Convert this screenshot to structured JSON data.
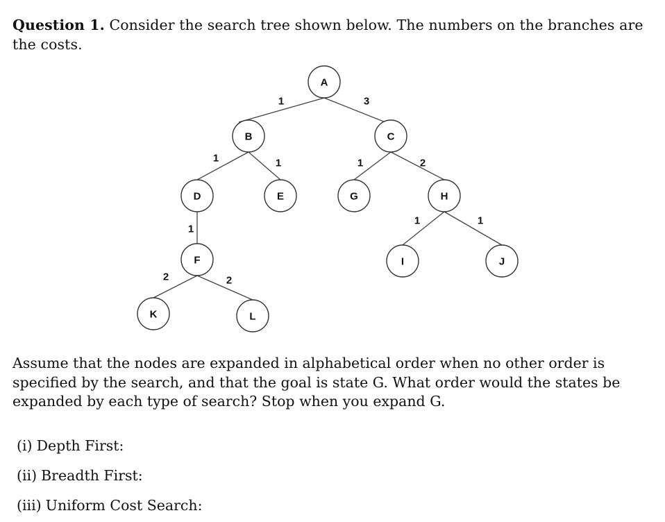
{
  "question": {
    "label": "Question 1.",
    "text": " Consider the search tree shown below. The numbers on the branches are the costs."
  },
  "tree": {
    "nodes": [
      {
        "id": "A",
        "label": "A"
      },
      {
        "id": "B",
        "label": "B"
      },
      {
        "id": "C",
        "label": "C"
      },
      {
        "id": "D",
        "label": "D"
      },
      {
        "id": "E",
        "label": "E"
      },
      {
        "id": "G",
        "label": "G"
      },
      {
        "id": "H",
        "label": "H"
      },
      {
        "id": "F",
        "label": "F"
      },
      {
        "id": "I",
        "label": "I"
      },
      {
        "id": "J",
        "label": "J"
      },
      {
        "id": "K",
        "label": "K"
      },
      {
        "id": "L",
        "label": "L"
      }
    ],
    "edges": [
      {
        "from": "A",
        "to": "B",
        "cost": "1"
      },
      {
        "from": "A",
        "to": "C",
        "cost": "3"
      },
      {
        "from": "B",
        "to": "D",
        "cost": "1"
      },
      {
        "from": "B",
        "to": "E",
        "cost": "1"
      },
      {
        "from": "C",
        "to": "G",
        "cost": "1"
      },
      {
        "from": "C",
        "to": "H",
        "cost": "2"
      },
      {
        "from": "D",
        "to": "F",
        "cost": "1"
      },
      {
        "from": "H",
        "to": "I",
        "cost": "1"
      },
      {
        "from": "H",
        "to": "J",
        "cost": "1"
      },
      {
        "from": "F",
        "to": "K",
        "cost": "2"
      },
      {
        "from": "F",
        "to": "L",
        "cost": "2"
      }
    ]
  },
  "assume_text": "Assume that the nodes are expanded in alphabetical order when no other order is specified by the search, and that the goal is state G. What order would the states be expanded by each type of search? Stop when you expand G.",
  "subquestions": [
    {
      "num": "(i)",
      "text": "Depth First:"
    },
    {
      "num": "(ii)",
      "text": "Breadth First:"
    },
    {
      "num": "(iii)",
      "text": "Uniform Cost Search:"
    }
  ]
}
